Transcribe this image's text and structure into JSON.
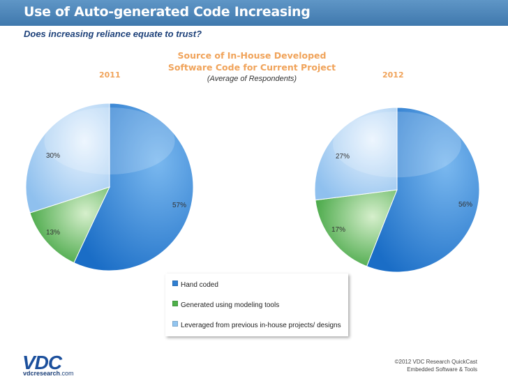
{
  "header": {
    "title": "Use of Auto-generated Code Increasing",
    "subtitle": "Does increasing reliance equate to trust?"
  },
  "chart_data": {
    "type": "pie",
    "title": "Source of In-House Developed Software Code for Current Project",
    "subtitle": "(Average of Respondents)",
    "categories": [
      "Hand coded",
      "Generated using modeling tools",
      "Leveraged from previous in-house projects/ designs"
    ],
    "colors": [
      "#2f7fd2",
      "#4eb04a",
      "#92c5f0"
    ],
    "charts": [
      {
        "year": "2011",
        "values": [
          57,
          13,
          30
        ],
        "labels": [
          "57%",
          "13%",
          "30%"
        ]
      },
      {
        "year": "2012",
        "values": [
          56,
          17,
          27
        ],
        "labels": [
          "56%",
          "17%",
          "27%"
        ]
      }
    ]
  },
  "legend": {
    "items": [
      "Hand coded",
      "Generated using modeling tools",
      "Leveraged from previous in-house projects/ designs"
    ]
  },
  "footer": {
    "logo": "VDC",
    "site_prefix": "vdcresearch",
    "site_suffix": ".com",
    "copyright": "©2012 VDC Research QuickCast",
    "tagline": "Embedded Software & Tools"
  }
}
